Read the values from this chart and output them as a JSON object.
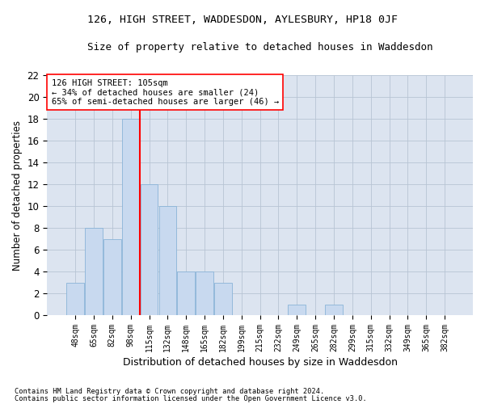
{
  "title1": "126, HIGH STREET, WADDESDON, AYLESBURY, HP18 0JF",
  "title2": "Size of property relative to detached houses in Waddesdon",
  "xlabel": "Distribution of detached houses by size in Waddesdon",
  "ylabel": "Number of detached properties",
  "footnote1": "Contains HM Land Registry data © Crown copyright and database right 2024.",
  "footnote2": "Contains public sector information licensed under the Open Government Licence v3.0.",
  "categories": [
    "48sqm",
    "65sqm",
    "82sqm",
    "98sqm",
    "115sqm",
    "132sqm",
    "148sqm",
    "165sqm",
    "182sqm",
    "199sqm",
    "215sqm",
    "232sqm",
    "249sqm",
    "265sqm",
    "282sqm",
    "299sqm",
    "315sqm",
    "332sqm",
    "349sqm",
    "365sqm",
    "382sqm"
  ],
  "values": [
    3,
    8,
    7,
    18,
    12,
    10,
    4,
    4,
    3,
    0,
    0,
    0,
    1,
    0,
    1,
    0,
    0,
    0,
    0,
    0,
    0
  ],
  "bar_color": "#c8d9ef",
  "bar_edge_color": "#8ab4d8",
  "grid_color": "#b8c4d4",
  "background_color": "#dce4f0",
  "vline_x_index": 4,
  "vline_color": "red",
  "annotation_text": "126 HIGH STREET: 105sqm\n← 34% of detached houses are smaller (24)\n65% of semi-detached houses are larger (46) →",
  "annotation_box_color": "white",
  "annotation_box_edge": "red",
  "ylim": [
    0,
    22
  ],
  "yticks": [
    0,
    2,
    4,
    6,
    8,
    10,
    12,
    14,
    16,
    18,
    20,
    22
  ]
}
